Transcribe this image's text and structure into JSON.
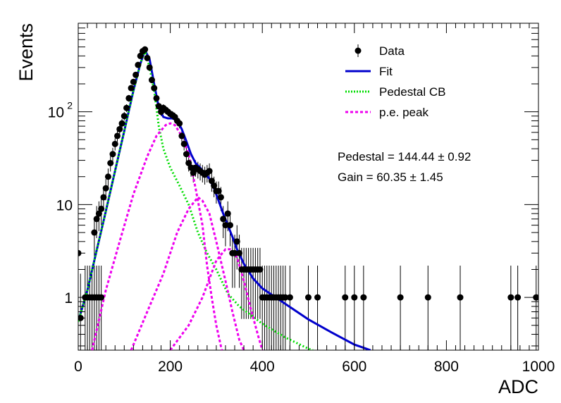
{
  "chart_data": {
    "type": "scatter",
    "title": "",
    "xlabel": "ADC",
    "ylabel": "Events",
    "xlim": [
      0,
      1000
    ],
    "ylim": [
      0.27,
      900
    ],
    "ylog": true,
    "grid": false,
    "legend_position": "top-right",
    "x_ticks": [
      {
        "value": 0,
        "label": "0"
      },
      {
        "value": 200,
        "label": "200"
      },
      {
        "value": 400,
        "label": "400"
      },
      {
        "value": 600,
        "label": "600"
      },
      {
        "value": 800,
        "label": "800"
      },
      {
        "value": 1000,
        "label": "1000"
      }
    ],
    "y_ticks": [
      {
        "value": 1,
        "label": "1"
      },
      {
        "value": 10,
        "label": "10"
      },
      {
        "value": 100,
        "label": "10",
        "sup": "2"
      }
    ],
    "legend": [
      {
        "label": "Data",
        "marker": "point",
        "color": "#000000"
      },
      {
        "label": "Fit",
        "marker": "line",
        "color": "#0000cc"
      },
      {
        "label": "Pedestal CB",
        "marker": "dotted",
        "color": "#00dd00"
      },
      {
        "label": "p.e. peak",
        "marker": "dashed",
        "color": "#ee00ee"
      }
    ],
    "annotations": [
      {
        "text": "Pedestal = 144.44 ± 0.92"
      },
      {
        "text": "Gain = 60.35 ± 1.45"
      }
    ],
    "series": [
      {
        "name": "Data",
        "type": "scatter",
        "color": "#000000",
        "points": [
          [
            0,
            3
          ],
          [
            5,
            0.6
          ],
          [
            15,
            1
          ],
          [
            20,
            1
          ],
          [
            25,
            1
          ],
          [
            30,
            1
          ],
          [
            35,
            1
          ],
          [
            40,
            1
          ],
          [
            45,
            1
          ],
          [
            50,
            1
          ],
          [
            35,
            5
          ],
          [
            40,
            7
          ],
          [
            45,
            8
          ],
          [
            50,
            9
          ],
          [
            55,
            12
          ],
          [
            60,
            15
          ],
          [
            65,
            20
          ],
          [
            70,
            28
          ],
          [
            75,
            35
          ],
          [
            80,
            45
          ],
          [
            85,
            55
          ],
          [
            90,
            65
          ],
          [
            95,
            75
          ],
          [
            100,
            90
          ],
          [
            105,
            110
          ],
          [
            110,
            140
          ],
          [
            115,
            180
          ],
          [
            120,
            210
          ],
          [
            125,
            250
          ],
          [
            130,
            320
          ],
          [
            135,
            400
          ],
          [
            140,
            450
          ],
          [
            145,
            470
          ],
          [
            150,
            380
          ],
          [
            155,
            300
          ],
          [
            160,
            220
          ],
          [
            165,
            180
          ],
          [
            170,
            140
          ],
          [
            175,
            115
          ],
          [
            180,
            100
          ],
          [
            185,
            110
          ],
          [
            190,
            105
          ],
          [
            195,
            100
          ],
          [
            200,
            95
          ],
          [
            205,
            92
          ],
          [
            210,
            88
          ],
          [
            215,
            80
          ],
          [
            220,
            75
          ],
          [
            225,
            55
          ],
          [
            230,
            45
          ],
          [
            235,
            35
          ],
          [
            240,
            28
          ],
          [
            245,
            25
          ],
          [
            250,
            22
          ],
          [
            255,
            25
          ],
          [
            260,
            24
          ],
          [
            265,
            23
          ],
          [
            270,
            22
          ],
          [
            275,
            21
          ],
          [
            280,
            22
          ],
          [
            285,
            23
          ],
          [
            290,
            18
          ],
          [
            295,
            16
          ],
          [
            300,
            14
          ],
          [
            305,
            14
          ],
          [
            310,
            12
          ],
          [
            315,
            7
          ],
          [
            320,
            6
          ],
          [
            325,
            8
          ],
          [
            330,
            6
          ],
          [
            335,
            3
          ],
          [
            340,
            3
          ],
          [
            345,
            4
          ],
          [
            350,
            3
          ],
          [
            355,
            2
          ],
          [
            360,
            2
          ],
          [
            365,
            2
          ],
          [
            370,
            2
          ],
          [
            375,
            2
          ],
          [
            380,
            2
          ],
          [
            385,
            2
          ],
          [
            390,
            2
          ],
          [
            395,
            2
          ],
          [
            400,
            1
          ],
          [
            405,
            1
          ],
          [
            410,
            1
          ],
          [
            415,
            1
          ],
          [
            420,
            1
          ],
          [
            425,
            1
          ],
          [
            430,
            1
          ],
          [
            435,
            1
          ],
          [
            440,
            1
          ],
          [
            445,
            1
          ],
          [
            450,
            1
          ],
          [
            460,
            1
          ],
          [
            500,
            1
          ],
          [
            520,
            1
          ],
          [
            580,
            1
          ],
          [
            600,
            1
          ],
          [
            620,
            1
          ],
          [
            700,
            1
          ],
          [
            760,
            1
          ],
          [
            830,
            1
          ],
          [
            940,
            1
          ],
          [
            955,
            1
          ],
          [
            995,
            1
          ]
        ]
      },
      {
        "name": "Fit",
        "type": "line",
        "color": "#0000cc",
        "points": [
          [
            0,
            0.55
          ],
          [
            20,
            1.2
          ],
          [
            40,
            3.2
          ],
          [
            60,
            8.5
          ],
          [
            80,
            23
          ],
          [
            100,
            62
          ],
          [
            120,
            170
          ],
          [
            135,
            330
          ],
          [
            145,
            460
          ],
          [
            155,
            370
          ],
          [
            165,
            200
          ],
          [
            175,
            110
          ],
          [
            185,
            88
          ],
          [
            195,
            85
          ],
          [
            205,
            85
          ],
          [
            215,
            80
          ],
          [
            225,
            65
          ],
          [
            235,
            48
          ],
          [
            245,
            35
          ],
          [
            255,
            28
          ],
          [
            265,
            25
          ],
          [
            275,
            22
          ],
          [
            285,
            19
          ],
          [
            295,
            15
          ],
          [
            305,
            11
          ],
          [
            315,
            8
          ],
          [
            325,
            6
          ],
          [
            335,
            4.5
          ],
          [
            345,
            3.3
          ],
          [
            360,
            2.3
          ],
          [
            380,
            1.6
          ],
          [
            400,
            1.25
          ],
          [
            450,
            0.85
          ],
          [
            500,
            0.58
          ],
          [
            550,
            0.42
          ],
          [
            600,
            0.31
          ],
          [
            635,
            0.27
          ]
        ]
      },
      {
        "name": "Pedestal CB",
        "type": "line",
        "color": "#00dd00",
        "points": [
          [
            0,
            0.55
          ],
          [
            20,
            1.2
          ],
          [
            40,
            3.2
          ],
          [
            60,
            8.5
          ],
          [
            80,
            23
          ],
          [
            100,
            62
          ],
          [
            120,
            170
          ],
          [
            135,
            330
          ],
          [
            145,
            460
          ],
          [
            155,
            300
          ],
          [
            165,
            170
          ],
          [
            175,
            70
          ],
          [
            185,
            40
          ],
          [
            200,
            25
          ],
          [
            220,
            16
          ],
          [
            240,
            10
          ],
          [
            260,
            5
          ],
          [
            280,
            3
          ],
          [
            300,
            2
          ],
          [
            325,
            1.1
          ],
          [
            350,
            0.8
          ],
          [
            400,
            0.52
          ],
          [
            450,
            0.37
          ],
          [
            500,
            0.28
          ],
          [
            510,
            0.27
          ]
        ]
      },
      {
        "name": "p.e. peak 1",
        "type": "line",
        "color": "#ee00ee",
        "points": [
          [
            30,
            0.27
          ],
          [
            60,
            1.2
          ],
          [
            90,
            4
          ],
          [
            120,
            13
          ],
          [
            150,
            33
          ],
          [
            170,
            55
          ],
          [
            190,
            72
          ],
          [
            200,
            75
          ],
          [
            210,
            72
          ],
          [
            225,
            55
          ],
          [
            240,
            35
          ],
          [
            255,
            15
          ],
          [
            270,
            6
          ],
          [
            280,
            2.2
          ],
          [
            290,
            1
          ],
          [
            300,
            0.5
          ],
          [
            312,
            0.27
          ]
        ]
      },
      {
        "name": "p.e. peak 2",
        "type": "line",
        "color": "#ee00ee",
        "points": [
          [
            115,
            0.27
          ],
          [
            150,
            0.7
          ],
          [
            185,
            1.8
          ],
          [
            215,
            5
          ],
          [
            240,
            9
          ],
          [
            260,
            12
          ],
          [
            270,
            11
          ],
          [
            285,
            8
          ],
          [
            300,
            4
          ],
          [
            320,
            1.5
          ],
          [
            335,
            0.7
          ],
          [
            350,
            0.35
          ],
          [
            360,
            0.27
          ]
        ]
      },
      {
        "name": "p.e. peak 3",
        "type": "line",
        "color": "#ee00ee",
        "points": [
          [
            200,
            0.27
          ],
          [
            240,
            0.5
          ],
          [
            270,
            1
          ],
          [
            300,
            2.5
          ],
          [
            320,
            3.3
          ],
          [
            330,
            3.3
          ],
          [
            345,
            2.7
          ],
          [
            360,
            1.5
          ],
          [
            375,
            0.75
          ],
          [
            390,
            0.4
          ],
          [
            400,
            0.27
          ]
        ]
      }
    ]
  }
}
